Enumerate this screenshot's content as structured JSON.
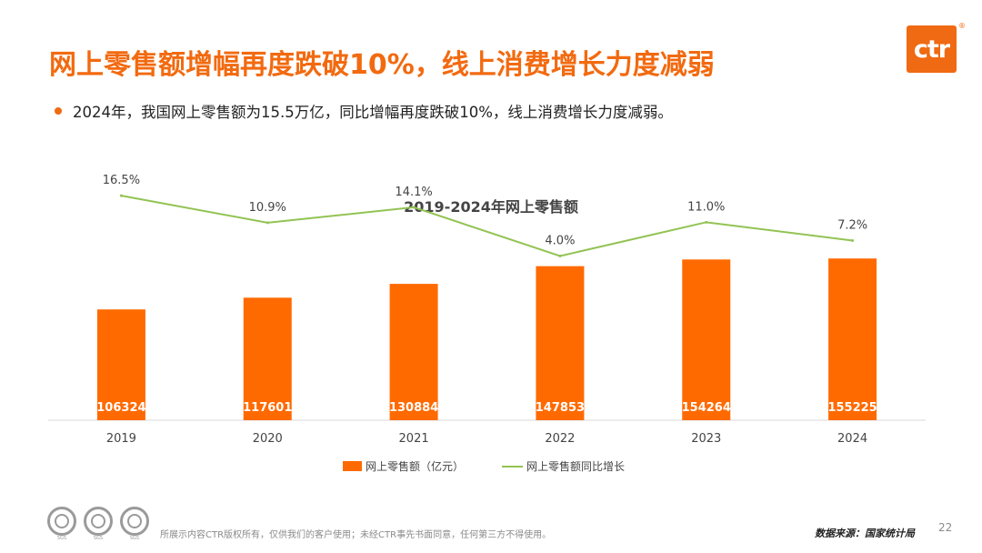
{
  "slide": {
    "title": "网上零售额增幅再度跌破10%，线上消费增长力度减弱",
    "bullet": "2024年，我国网上零售额为15.5万亿，同比增幅再度跌破10%，线上消费增长力度减弱。",
    "logo_text": "ctr",
    "logo_reg": "®",
    "footer_copyright": "所展示内容CTR版权所有，仅供我们的客户使用；未经CTR事先书面同意，任何第三方不得使用。",
    "footer_source": "数据来源：国家统计局",
    "page_number": "22",
    "badges": [
      "SGS",
      "SGS",
      "SGS"
    ],
    "accent_color": "#ef6a12"
  },
  "chart_data": {
    "type": "bar",
    "title": "2019-2024年网上零售额",
    "categories": [
      "2019",
      "2020",
      "2021",
      "2022",
      "2023",
      "2024"
    ],
    "series": [
      {
        "name": "网上零售额（亿元）",
        "type": "bar",
        "color": "#ff6a00",
        "values": [
          106324,
          117601,
          130884,
          147853,
          154264,
          155225
        ],
        "labels": [
          "106324",
          "117601",
          "130884",
          "147853",
          "154264",
          "155225"
        ]
      },
      {
        "name": "网上零售额同比增长",
        "type": "line",
        "color": "#92c353",
        "values": [
          16.5,
          10.9,
          14.1,
          4.0,
          11.0,
          7.2
        ],
        "labels": [
          "16.5%",
          "10.9%",
          "14.1%",
          "4.0%",
          "11.0%",
          "7.2%"
        ]
      }
    ],
    "bar_axis_range": [
      0,
      220000
    ],
    "line_axis_range": [
      -30,
      25
    ],
    "legend_position": "bottom",
    "grid": false
  }
}
